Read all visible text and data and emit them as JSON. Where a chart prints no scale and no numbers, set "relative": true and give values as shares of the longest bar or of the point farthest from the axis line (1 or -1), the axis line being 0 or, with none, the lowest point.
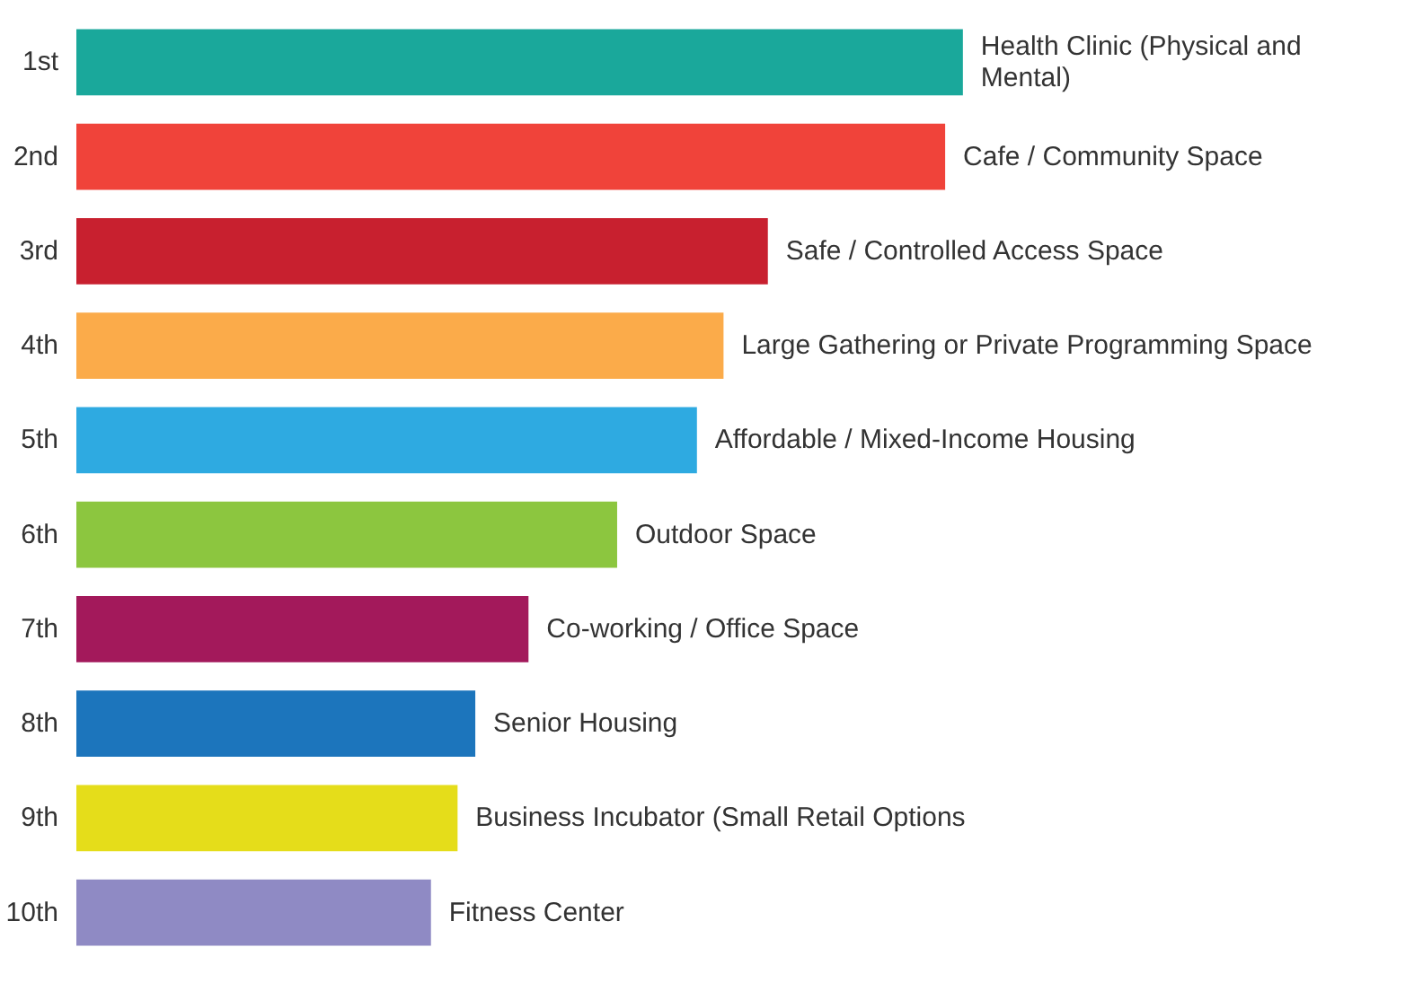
{
  "chart_data": {
    "type": "bar",
    "orientation": "horizontal",
    "relative": true,
    "grid": false,
    "categories": [
      "1st",
      "2nd",
      "3rd",
      "4th",
      "5th",
      "6th",
      "7th",
      "8th",
      "9th",
      "10th"
    ],
    "values": [
      1,
      0.98,
      0.78,
      0.73,
      0.7,
      0.61,
      0.51,
      0.45,
      0.43,
      0.4
    ],
    "colors": [
      "#1aa89b",
      "#f0433a",
      "#c8202f",
      "#fbab4a",
      "#2eaae1",
      "#8cc63f",
      "#a3195b",
      "#1c75bc",
      "#e5dd1a",
      "#8f8ac4"
    ],
    "annotations": [
      {
        "text": "Health Clinic (Physical and Mental)",
        "x": 1,
        "y": "1st"
      },
      {
        "text": "Cafe / Community Space",
        "x": 0.98,
        "y": "2nd"
      },
      {
        "text": "Safe / Controlled Access Space",
        "x": 0.78,
        "y": "3rd"
      },
      {
        "text": "Large Gathering or Private Programming Space",
        "x": 0.73,
        "y": "4th"
      },
      {
        "text": "Affordable / Mixed-Income Housing",
        "x": 0.7,
        "y": "5th"
      },
      {
        "text": "Outdoor Space",
        "x": 0.61,
        "y": "6th"
      },
      {
        "text": "Co-working / Office Space",
        "x": 0.51,
        "y": "7th"
      },
      {
        "text": "Senior Housing",
        "x": 0.45,
        "y": "8th"
      },
      {
        "text": "Business Incubator (Small Retail Options",
        "x": 0.43,
        "y": "9th"
      },
      {
        "text": "Fitness Center",
        "x": 0.4,
        "y": "10th"
      }
    ]
  }
}
